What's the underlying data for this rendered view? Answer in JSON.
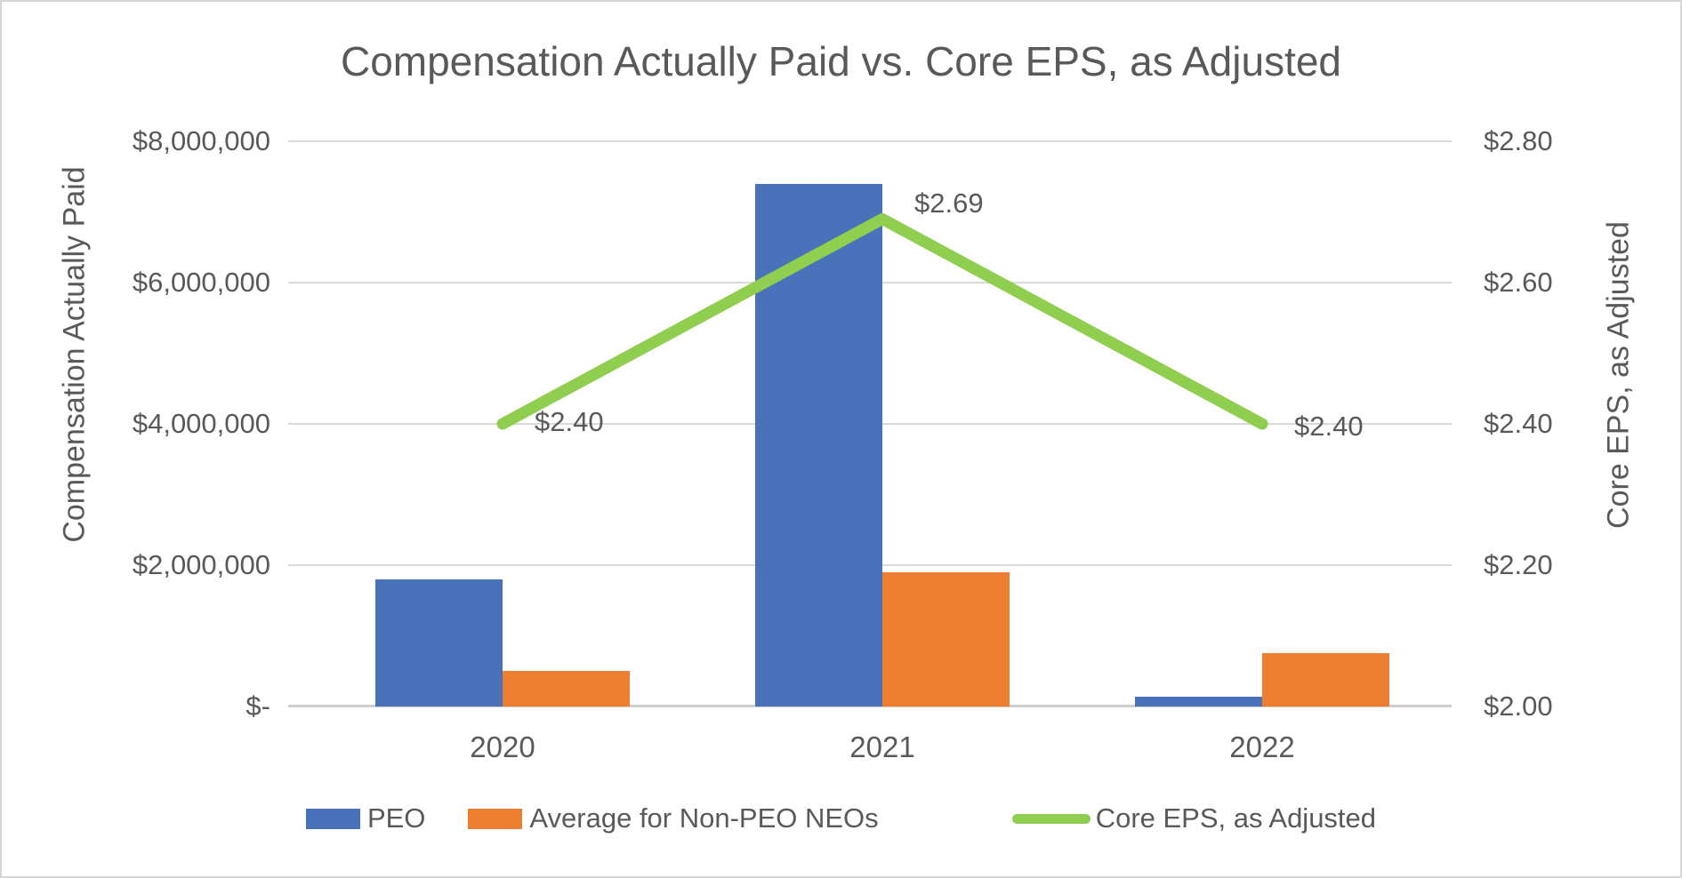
{
  "title": "Compensation Actually Paid vs. Core EPS, as Adjusted",
  "colors": {
    "peo_bar": "#4a72ba",
    "non_peo_bar": "#ed7d31",
    "eps_line": "#8fce4e",
    "text": "#595959",
    "gridline": "#d9d9d9"
  },
  "chart_data": {
    "type": "bar",
    "subtype": "clustered-bars-with-line-overlay",
    "categories": [
      "2020",
      "2021",
      "2022"
    ],
    "series": [
      {
        "name": "PEO",
        "type": "bar",
        "axis": "left",
        "color": "#4a72ba",
        "values": [
          1800000,
          7400000,
          140000
        ]
      },
      {
        "name": "Average for Non-PEO NEOs",
        "type": "bar",
        "axis": "left",
        "color": "#ed7d31",
        "values": [
          500000,
          1900000,
          750000
        ]
      },
      {
        "name": "Core EPS, as Adjusted",
        "type": "line",
        "axis": "right",
        "color": "#8fce4e",
        "values": [
          2.4,
          2.69,
          2.4
        ],
        "data_labels": [
          "$2.40",
          "$2.69",
          "$2.40"
        ]
      }
    ],
    "left_axis": {
      "title": "Compensation Actually Paid",
      "min": 0,
      "max": 8000000,
      "tick_step": 2000000,
      "tick_labels": [
        "$-",
        "$2,000,000",
        "$4,000,000",
        "$6,000,000",
        "$8,000,000"
      ]
    },
    "right_axis": {
      "title": "Core EPS, as Adjusted",
      "min": 2.0,
      "max": 2.8,
      "tick_step": 0.2,
      "tick_labels": [
        "$2.00",
        "$2.20",
        "$2.40",
        "$2.60",
        "$2.80"
      ]
    },
    "grid": true,
    "legend_position": "bottom",
    "legend": [
      "PEO",
      "Average for Non-PEO NEOs",
      "Core EPS, as Adjusted"
    ]
  }
}
